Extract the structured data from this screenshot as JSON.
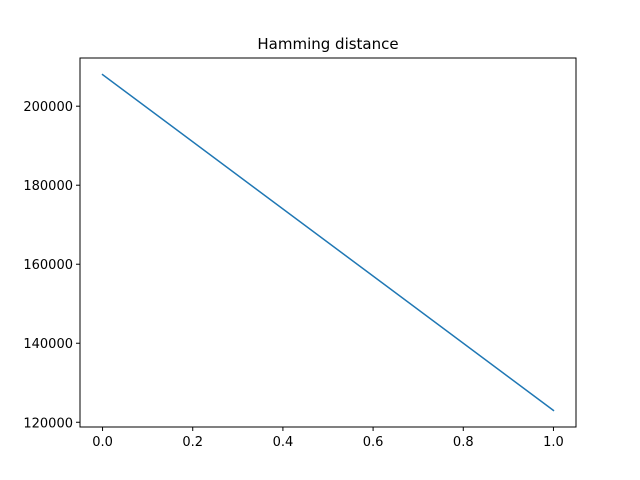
{
  "chart_data": {
    "type": "line",
    "title": "Hamming distance",
    "xlabel": "",
    "ylabel": "",
    "xlim": [
      -0.05,
      1.05
    ],
    "ylim": [
      118800,
      212200
    ],
    "x_ticks": [
      0.0,
      0.2,
      0.4,
      0.6,
      0.8,
      1.0
    ],
    "x_tick_labels": [
      "0.0",
      "0.2",
      "0.4",
      "0.6",
      "0.8",
      "1.0"
    ],
    "y_ticks": [
      120000,
      140000,
      160000,
      180000,
      200000
    ],
    "y_tick_labels": [
      "120000",
      "140000",
      "160000",
      "180000",
      "200000"
    ],
    "grid": false,
    "legend": "none",
    "series": [
      {
        "x": [
          0.0,
          1.0
        ],
        "y": [
          208000,
          123000
        ],
        "color": "#1f77b4"
      }
    ]
  }
}
